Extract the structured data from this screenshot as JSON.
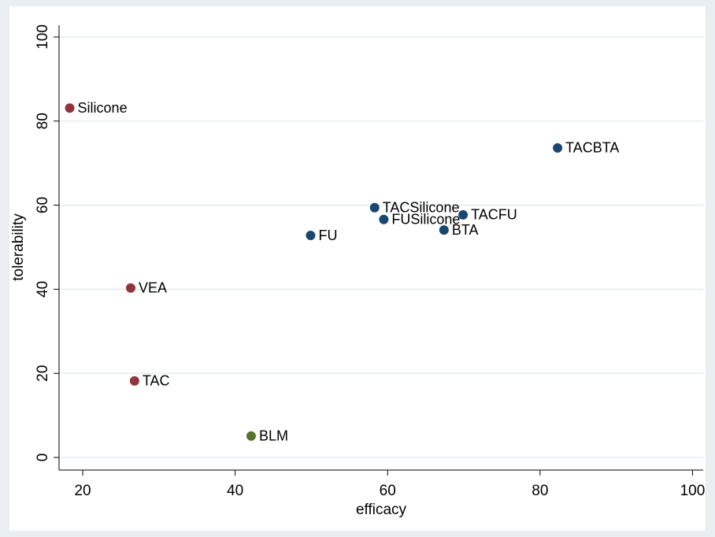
{
  "chart_data": {
    "type": "scatter",
    "x_label": "efficacy",
    "y_label": "tolerability",
    "labels": [
      "Silicone",
      "VEA",
      "TAC",
      "BLM",
      "FU",
      "TACSilicone",
      "FUSilicone",
      "BTA",
      "TACFU",
      "TACBTA"
    ],
    "x": [
      18.3,
      26.3,
      26.8,
      42.1,
      49.9,
      58.3,
      59.5,
      67.4,
      69.9,
      82.3
    ],
    "values": [
      83.1,
      40.3,
      18.2,
      5.1,
      52.8,
      59.4,
      56.6,
      54.1,
      57.7,
      73.6
    ],
    "colors": [
      "#90353b",
      "#90353b",
      "#90353b",
      "#55752f",
      "#1a476f",
      "#1a476f",
      "#1a476f",
      "#1a476f",
      "#1a476f",
      "#1a476f"
    ],
    "xlim": [
      16.9,
      101.4
    ],
    "xticks": [
      20,
      40,
      60,
      80,
      100
    ],
    "ylim": [
      -3,
      102.8
    ],
    "yticks": [
      0,
      20,
      40,
      60,
      80,
      100
    ],
    "grid": true
  }
}
